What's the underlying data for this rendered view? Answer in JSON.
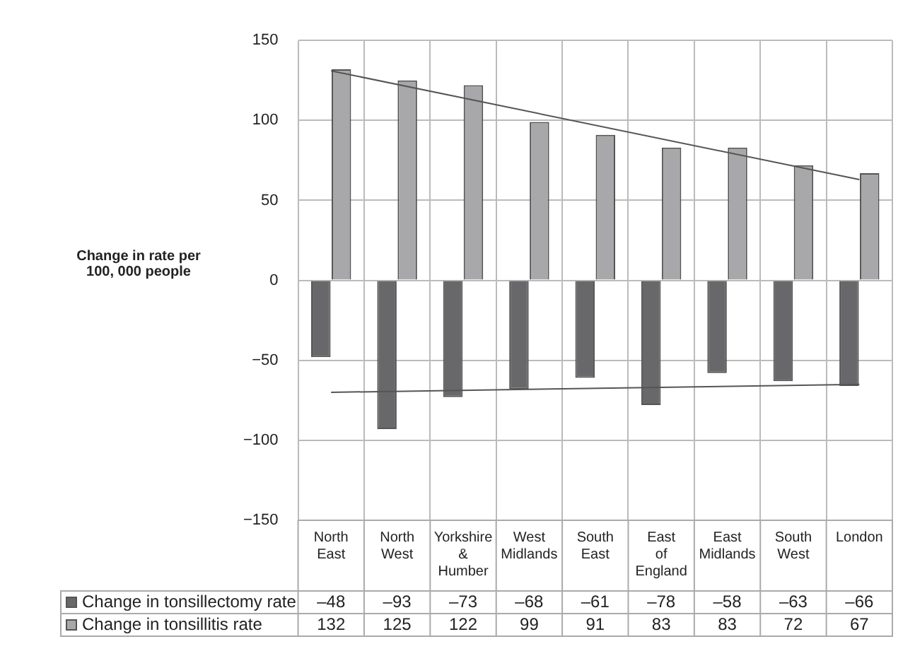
{
  "chart_data": {
    "type": "bar",
    "ylabel": "Change in rate per 100, 000 people",
    "categories": [
      "North East",
      "North West",
      "Yorkshire & Humber",
      "West Midlands",
      "South East",
      "East of England",
      "East Midlands",
      "South West",
      "London"
    ],
    "series": [
      {
        "name": "Change in tonsillectomy rate",
        "color": "#68686a",
        "values": [
          -48,
          -93,
          -73,
          -68,
          -61,
          -78,
          -58,
          -63,
          -66
        ],
        "value_labels": [
          "–48",
          "–93",
          "–73",
          "–68",
          "–61",
          "–78",
          "–58",
          "–63",
          "–66"
        ]
      },
      {
        "name": "Change in tonsillitis rate",
        "color": "#a8a8aa",
        "values": [
          132,
          125,
          122,
          99,
          91,
          83,
          83,
          72,
          67
        ],
        "value_labels": [
          "132",
          "125",
          "122",
          "99",
          "91",
          "83",
          "83",
          "72",
          "67"
        ]
      },
      {
        "type": "line",
        "color": "#555555",
        "x": [
          "North East",
          "London"
        ],
        "values": [
          131,
          63
        ]
      },
      {
        "type": "line",
        "color": "#555555",
        "x": [
          "North East",
          "London"
        ],
        "values": [
          -70,
          -65
        ]
      }
    ],
    "ylim": [
      -150,
      150
    ],
    "yticks": [
      -150,
      -100,
      -50,
      0,
      50,
      100,
      150
    ],
    "grid": true,
    "legend": "bottom"
  }
}
